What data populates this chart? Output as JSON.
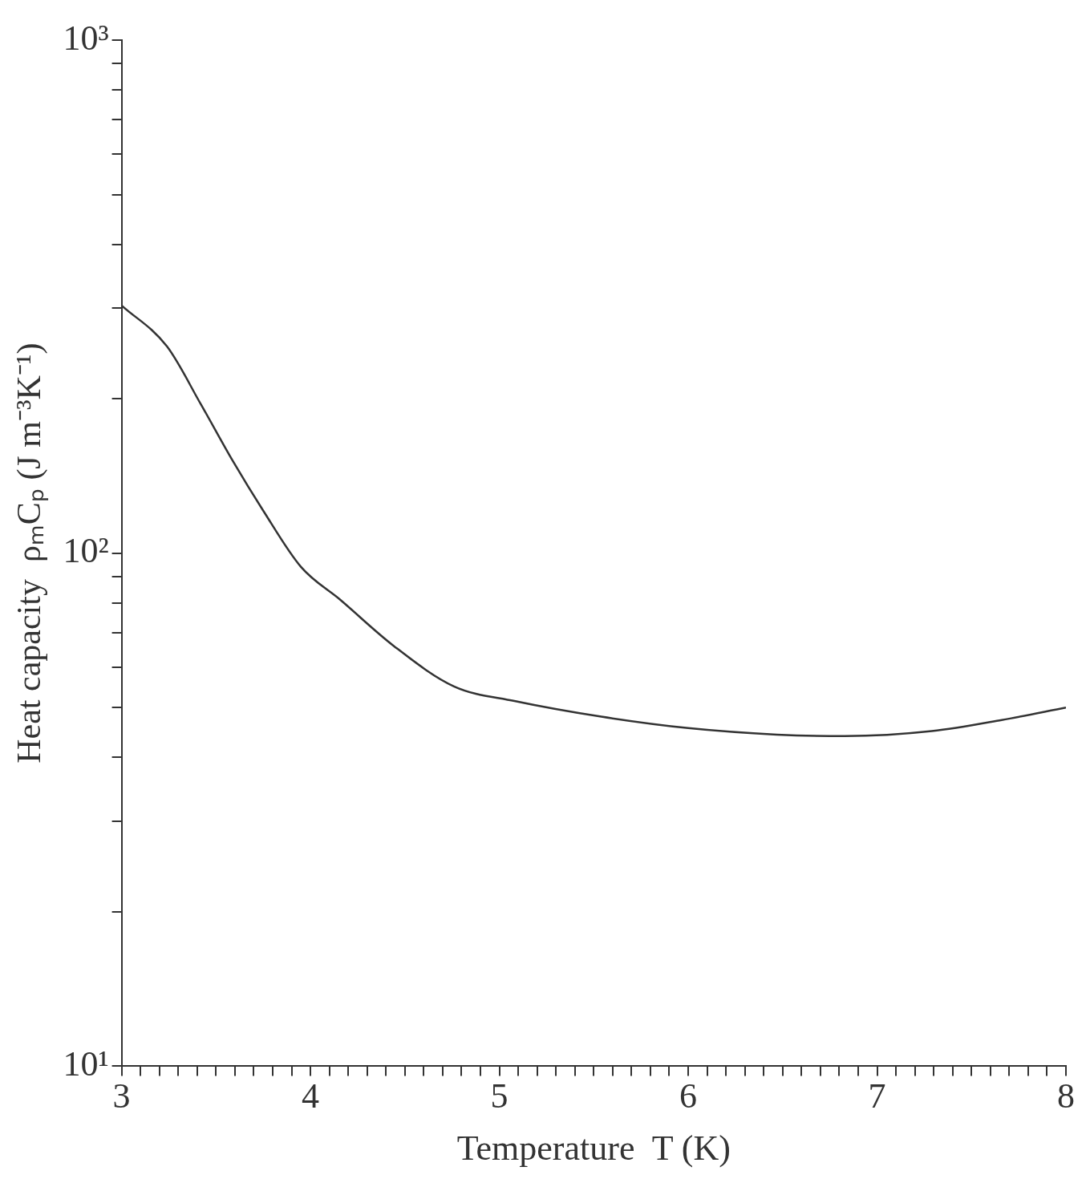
{
  "chart_data": {
    "type": "line",
    "xlabel": "Temperature  T (K)",
    "ylabel": "Heat capacity  ρₘCₚ (J m⁻³K⁻¹)",
    "log": "y",
    "grid": false,
    "x": [
      3.0,
      3.24,
      3.42,
      3.59,
      3.75,
      3.95,
      4.16,
      4.44,
      4.76,
      5.08,
      5.54,
      6.0,
      6.47,
      6.83,
      7.29,
      7.66,
      8.0
    ],
    "series": [
      {
        "color": "#333333",
        "values": [
          304,
          253,
          195,
          151,
          121,
          94,
          81,
          66,
          55,
          51.5,
          48,
          45.6,
          44.3,
          44,
          45,
          47.3,
          50
        ]
      }
    ],
    "xlim": [
      3,
      8
    ],
    "ylim": [
      10,
      1000
    ],
    "xticks": [
      3,
      {
        "value": 3.1,
        "label": null
      },
      {
        "value": 3.2,
        "label": null
      },
      {
        "value": 3.3,
        "label": null
      },
      {
        "value": 3.4,
        "label": null
      },
      {
        "value": 3.5,
        "label": null
      },
      {
        "value": 3.6,
        "label": null
      },
      {
        "value": 3.7,
        "label": null
      },
      {
        "value": 3.8,
        "label": null
      },
      {
        "value": 3.9,
        "label": null
      },
      4,
      {
        "value": 4.1,
        "label": null
      },
      {
        "value": 4.2,
        "label": null
      },
      {
        "value": 4.3,
        "label": null
      },
      {
        "value": 4.4,
        "label": null
      },
      {
        "value": 4.5,
        "label": null
      },
      {
        "value": 4.6,
        "label": null
      },
      {
        "value": 4.7,
        "label": null
      },
      {
        "value": 4.8,
        "label": null
      },
      {
        "value": 4.9,
        "label": null
      },
      5,
      {
        "value": 5.1,
        "label": null
      },
      {
        "value": 5.2,
        "label": null
      },
      {
        "value": 5.3,
        "label": null
      },
      {
        "value": 5.4,
        "label": null
      },
      {
        "value": 5.5,
        "label": null
      },
      {
        "value": 5.6,
        "label": null
      },
      {
        "value": 5.7,
        "label": null
      },
      {
        "value": 5.8,
        "label": null
      },
      {
        "value": 5.9,
        "label": null
      },
      6,
      {
        "value": 6.1,
        "label": null
      },
      {
        "value": 6.2,
        "label": null
      },
      {
        "value": 6.3,
        "label": null
      },
      {
        "value": 6.4,
        "label": null
      },
      {
        "value": 6.5,
        "label": null
      },
      {
        "value": 6.6,
        "label": null
      },
      {
        "value": 6.7,
        "label": null
      },
      {
        "value": 6.8,
        "label": null
      },
      {
        "value": 6.9,
        "label": null
      },
      7,
      {
        "value": 7.1,
        "label": null
      },
      {
        "value": 7.2,
        "label": null
      },
      {
        "value": 7.3,
        "label": null
      },
      {
        "value": 7.4,
        "label": null
      },
      {
        "value": 7.5,
        "label": null
      },
      {
        "value": 7.6,
        "label": null
      },
      {
        "value": 7.7,
        "label": null
      },
      {
        "value": 7.8,
        "label": null
      },
      {
        "value": 7.9,
        "label": null
      },
      8
    ],
    "yticks": [
      {
        "value": 10,
        "label": "10¹"
      },
      {
        "value": 20,
        "label": null
      },
      {
        "value": 30,
        "label": null
      },
      {
        "value": 40,
        "label": null
      },
      {
        "value": 50,
        "label": null
      },
      {
        "value": 60,
        "label": null
      },
      {
        "value": 70,
        "label": null
      },
      {
        "value": 80,
        "label": null
      },
      {
        "value": 90,
        "label": null
      },
      {
        "value": 100,
        "label": "10²"
      },
      {
        "value": 200,
        "label": null
      },
      {
        "value": 300,
        "label": null
      },
      {
        "value": 400,
        "label": null
      },
      {
        "value": 500,
        "label": null
      },
      {
        "value": 600,
        "label": null
      },
      {
        "value": 700,
        "label": null
      },
      {
        "value": 800,
        "label": null
      },
      {
        "value": 900,
        "label": null
      },
      {
        "value": 1000,
        "label": "10³"
      }
    ]
  }
}
